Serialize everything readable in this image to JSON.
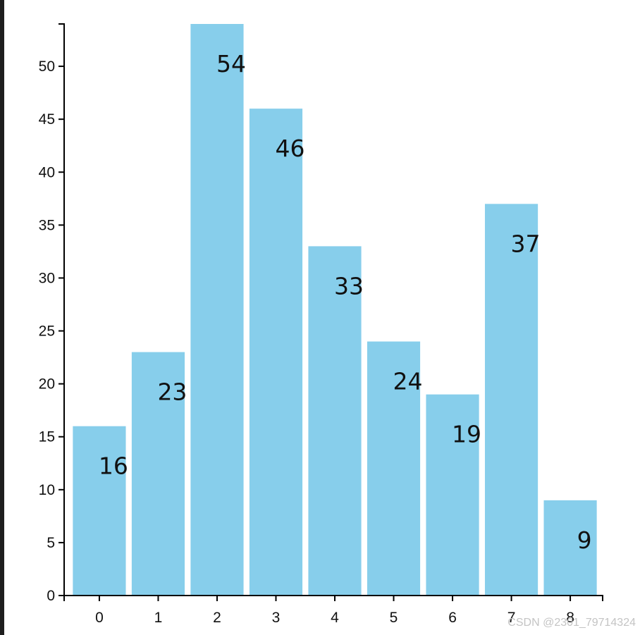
{
  "chart_data": {
    "type": "bar",
    "categories": [
      "0",
      "1",
      "2",
      "3",
      "4",
      "5",
      "6",
      "7",
      "8"
    ],
    "values": [
      16,
      23,
      54,
      46,
      33,
      24,
      19,
      37,
      9
    ],
    "y_ticks": [
      0,
      5,
      10,
      15,
      20,
      25,
      30,
      35,
      40,
      45,
      50
    ],
    "ylim": [
      0,
      54
    ],
    "title": "",
    "xlabel": "",
    "ylabel": "",
    "grid": false,
    "legend": "none",
    "bar_color": "#87ceeb",
    "axis_color": "#000000",
    "label_color": "#111111"
  },
  "watermark": "CSDN @2301_79714324"
}
